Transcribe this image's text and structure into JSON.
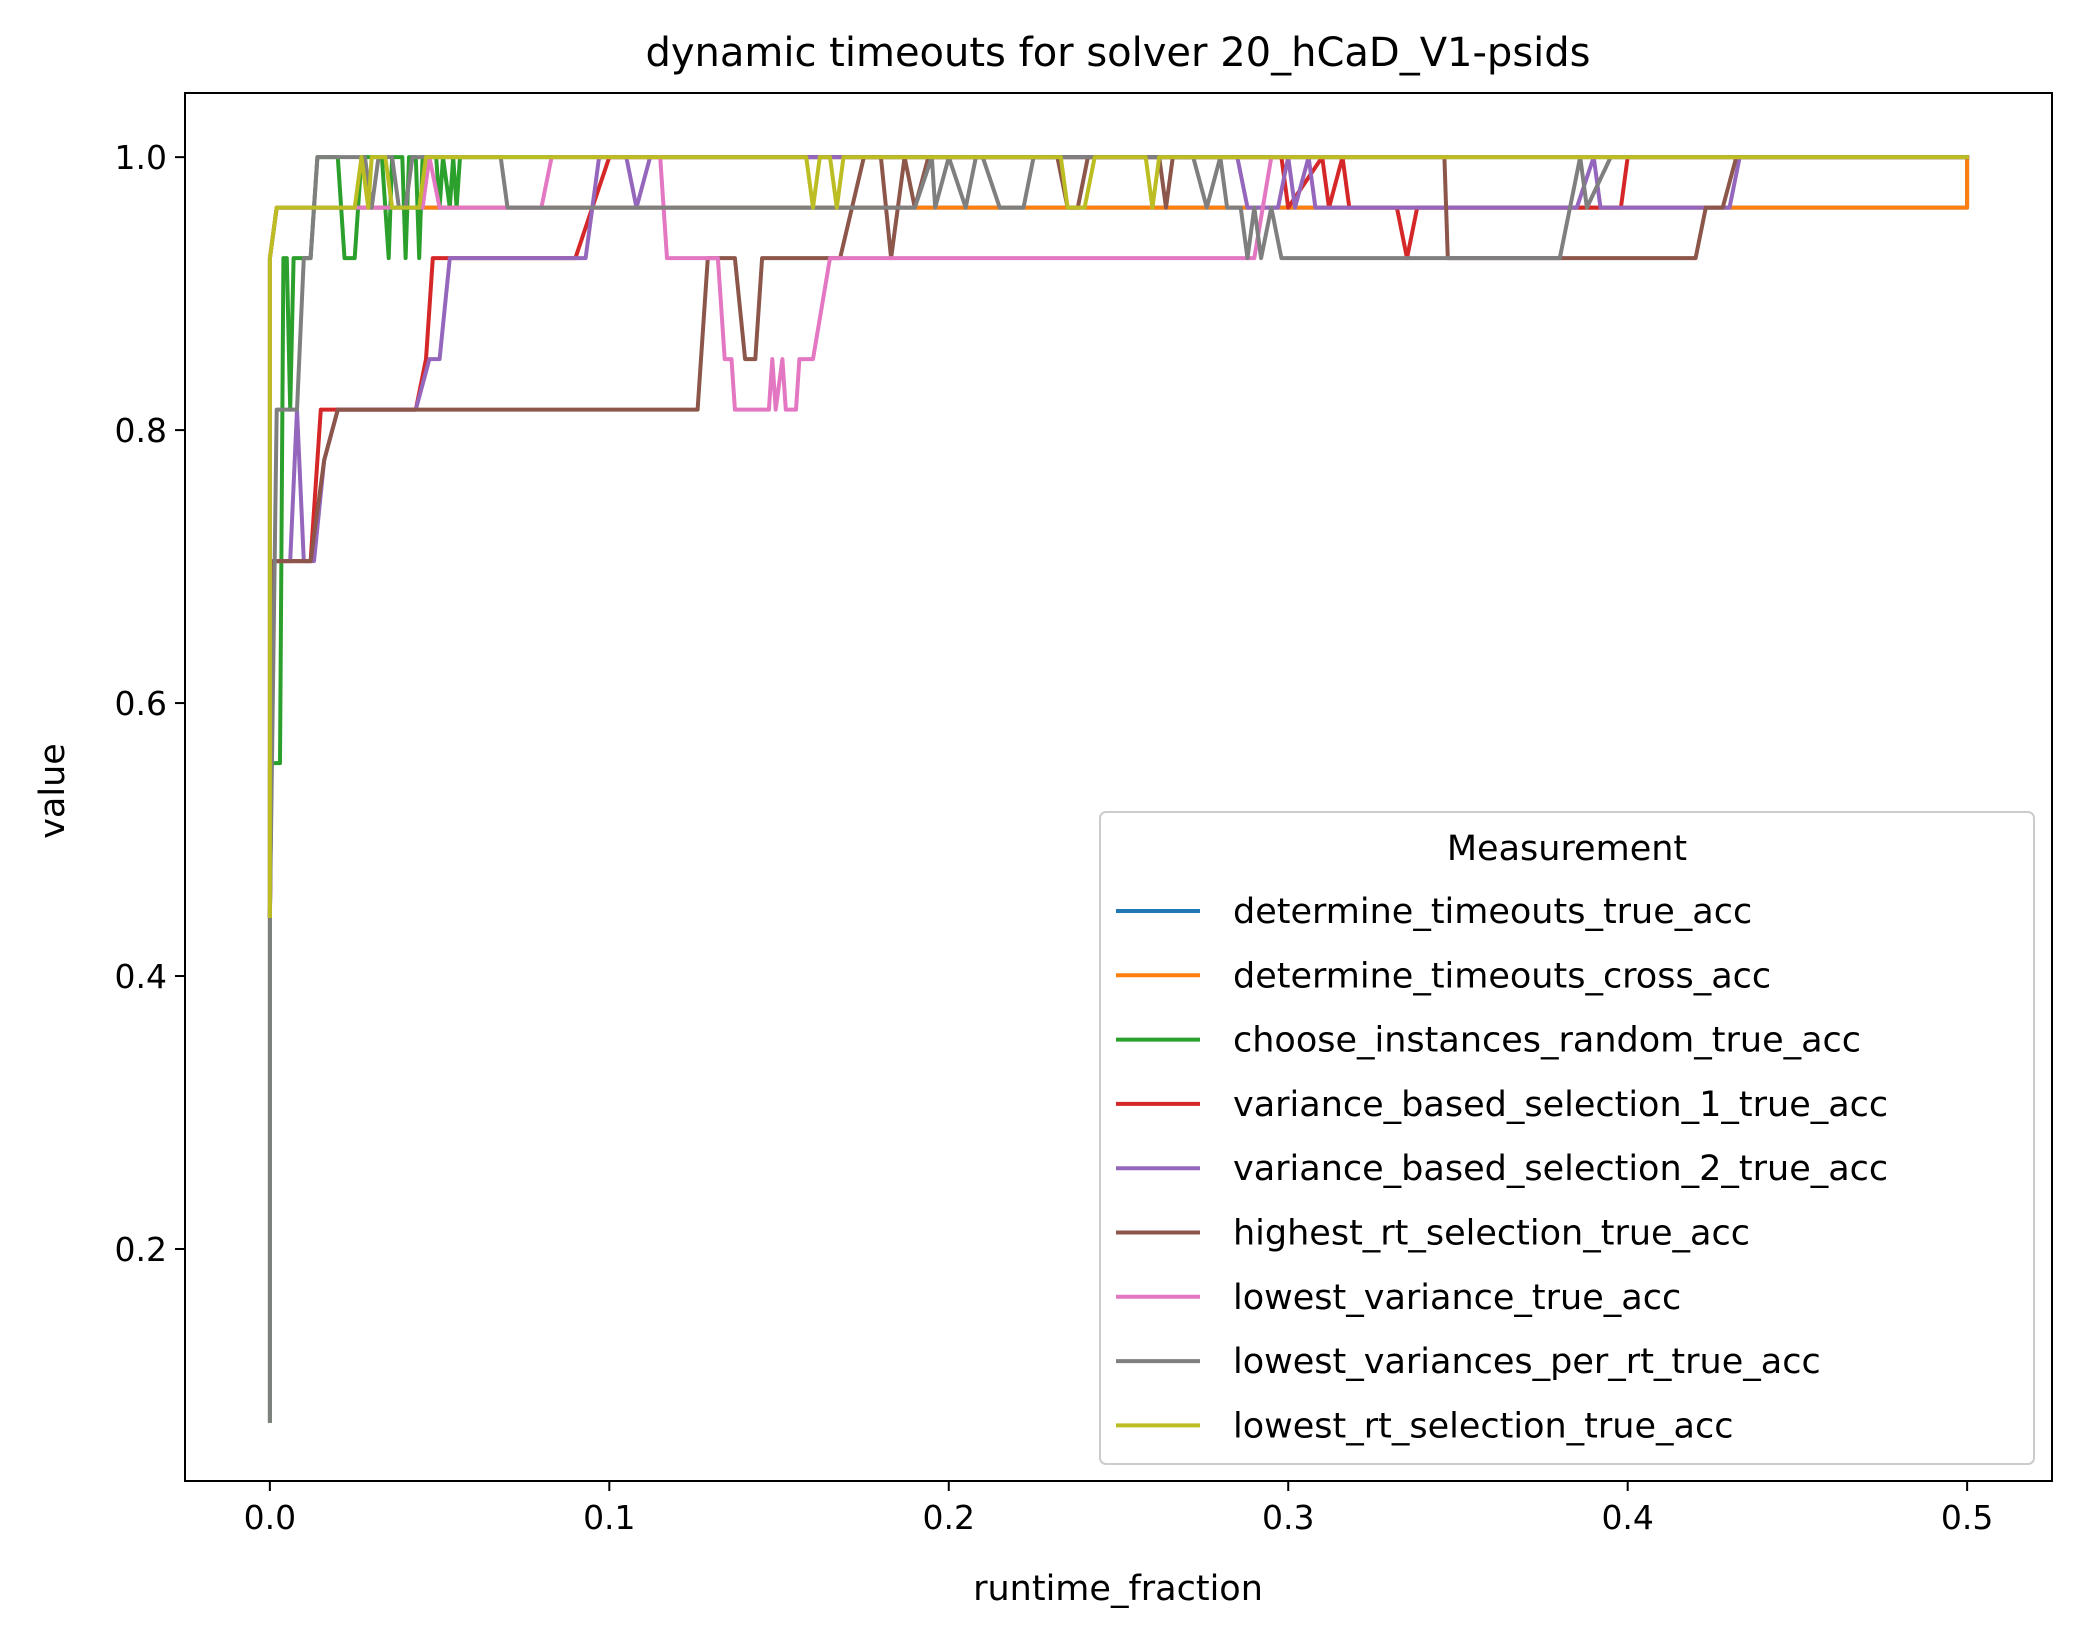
{
  "chart_data": {
    "type": "line",
    "title": "dynamic timeouts for solver 20_hCaD_V1-psids",
    "xlabel": "runtime_fraction",
    "ylabel": "value",
    "xlim": [
      -0.025,
      0.525
    ],
    "ylim": [
      0.03,
      1.047
    ],
    "x_ticks": [
      0.0,
      0.1,
      0.2,
      0.3,
      0.4,
      0.5
    ],
    "x_tick_labels": [
      "0.0",
      "0.1",
      "0.2",
      "0.3",
      "0.4",
      "0.5"
    ],
    "y_ticks": [
      0.2,
      0.4,
      0.6,
      0.8,
      1.0
    ],
    "y_tick_labels": [
      "0.2",
      "0.4",
      "0.6",
      "0.8",
      "1.0"
    ],
    "grid": false,
    "legend": {
      "title": "Measurement",
      "position": "lower-right"
    },
    "series": [
      {
        "name": "determine_timeouts_true_acc",
        "color": "#1f77b4",
        "points": [
          [
            0.0,
            0.444
          ],
          [
            0.0,
            0.926
          ],
          [
            0.002,
            0.963
          ],
          [
            0.5,
            0.963
          ],
          [
            0.5,
            1.0
          ]
        ]
      },
      {
        "name": "determine_timeouts_cross_acc",
        "color": "#ff7f0e",
        "points": [
          [
            0.0,
            0.444
          ],
          [
            0.0,
            0.926
          ],
          [
            0.002,
            0.963
          ],
          [
            0.5,
            0.963
          ],
          [
            0.5,
            1.0
          ]
        ]
      },
      {
        "name": "choose_instances_random_true_acc",
        "color": "#2ca02c",
        "points": [
          [
            0.0,
            0.074
          ],
          [
            0.0,
            0.556
          ],
          [
            0.003,
            0.556
          ],
          [
            0.004,
            0.926
          ],
          [
            0.005,
            0.926
          ],
          [
            0.006,
            0.815
          ],
          [
            0.007,
            0.926
          ],
          [
            0.012,
            0.926
          ],
          [
            0.014,
            1.0
          ],
          [
            0.02,
            1.0
          ],
          [
            0.022,
            0.926
          ],
          [
            0.025,
            0.926
          ],
          [
            0.027,
            1.0
          ],
          [
            0.033,
            1.0
          ],
          [
            0.035,
            0.926
          ],
          [
            0.036,
            1.0
          ],
          [
            0.039,
            1.0
          ],
          [
            0.04,
            0.926
          ],
          [
            0.041,
            1.0
          ],
          [
            0.043,
            1.0
          ],
          [
            0.044,
            0.926
          ],
          [
            0.045,
            1.0
          ],
          [
            0.049,
            1.0
          ],
          [
            0.05,
            0.963
          ],
          [
            0.051,
            1.0
          ],
          [
            0.053,
            0.963
          ],
          [
            0.054,
            1.0
          ],
          [
            0.055,
            0.963
          ],
          [
            0.056,
            1.0
          ],
          [
            0.5,
            1.0
          ]
        ]
      },
      {
        "name": "variance_based_selection_1_true_acc",
        "color": "#d62728",
        "points": [
          [
            0.0,
            0.444
          ],
          [
            0.001,
            0.704
          ],
          [
            0.012,
            0.704
          ],
          [
            0.015,
            0.815
          ],
          [
            0.043,
            0.815
          ],
          [
            0.046,
            0.852
          ],
          [
            0.048,
            0.926
          ],
          [
            0.09,
            0.926
          ],
          [
            0.095,
            0.963
          ],
          [
            0.1,
            1.0
          ],
          [
            0.298,
            1.0
          ],
          [
            0.3,
            0.963
          ],
          [
            0.31,
            1.0
          ],
          [
            0.312,
            0.963
          ],
          [
            0.316,
            1.0
          ],
          [
            0.318,
            0.963
          ],
          [
            0.332,
            0.963
          ],
          [
            0.335,
            0.926
          ],
          [
            0.338,
            0.963
          ],
          [
            0.398,
            0.963
          ],
          [
            0.4,
            1.0
          ],
          [
            0.5,
            1.0
          ]
        ]
      },
      {
        "name": "variance_based_selection_2_true_acc",
        "color": "#9467bd",
        "points": [
          [
            0.0,
            0.444
          ],
          [
            0.001,
            0.704
          ],
          [
            0.006,
            0.704
          ],
          [
            0.008,
            0.815
          ],
          [
            0.01,
            0.704
          ],
          [
            0.013,
            0.704
          ],
          [
            0.016,
            0.778
          ],
          [
            0.02,
            0.815
          ],
          [
            0.043,
            0.815
          ],
          [
            0.047,
            0.852
          ],
          [
            0.05,
            0.852
          ],
          [
            0.053,
            0.926
          ],
          [
            0.093,
            0.926
          ],
          [
            0.097,
            1.0
          ],
          [
            0.105,
            1.0
          ],
          [
            0.108,
            0.963
          ],
          [
            0.112,
            1.0
          ],
          [
            0.285,
            1.0
          ],
          [
            0.288,
            0.963
          ],
          [
            0.297,
            0.963
          ],
          [
            0.3,
            1.0
          ],
          [
            0.302,
            0.963
          ],
          [
            0.306,
            1.0
          ],
          [
            0.308,
            0.963
          ],
          [
            0.385,
            0.963
          ],
          [
            0.39,
            1.0
          ],
          [
            0.392,
            0.963
          ],
          [
            0.43,
            0.963
          ],
          [
            0.433,
            1.0
          ],
          [
            0.5,
            1.0
          ]
        ]
      },
      {
        "name": "highest_rt_selection_true_acc",
        "color": "#8c564b",
        "points": [
          [
            0.0,
            0.444
          ],
          [
            0.001,
            0.704
          ],
          [
            0.012,
            0.704
          ],
          [
            0.016,
            0.778
          ],
          [
            0.02,
            0.815
          ],
          [
            0.126,
            0.815
          ],
          [
            0.129,
            0.926
          ],
          [
            0.137,
            0.926
          ],
          [
            0.14,
            0.852
          ],
          [
            0.143,
            0.852
          ],
          [
            0.145,
            0.926
          ],
          [
            0.168,
            0.926
          ],
          [
            0.175,
            1.0
          ],
          [
            0.18,
            1.0
          ],
          [
            0.183,
            0.926
          ],
          [
            0.187,
            1.0
          ],
          [
            0.19,
            0.963
          ],
          [
            0.194,
            1.0
          ],
          [
            0.232,
            1.0
          ],
          [
            0.235,
            0.963
          ],
          [
            0.238,
            0.963
          ],
          [
            0.241,
            1.0
          ],
          [
            0.262,
            1.0
          ],
          [
            0.264,
            0.963
          ],
          [
            0.266,
            1.0
          ],
          [
            0.346,
            1.0
          ],
          [
            0.347,
            0.926
          ],
          [
            0.42,
            0.926
          ],
          [
            0.423,
            0.963
          ],
          [
            0.428,
            0.963
          ],
          [
            0.432,
            1.0
          ],
          [
            0.5,
            1.0
          ]
        ]
      },
      {
        "name": "lowest_variance_true_acc",
        "color": "#e377c2",
        "points": [
          [
            0.0,
            0.444
          ],
          [
            0.0,
            0.926
          ],
          [
            0.002,
            0.963
          ],
          [
            0.045,
            0.963
          ],
          [
            0.047,
            1.0
          ],
          [
            0.05,
            0.963
          ],
          [
            0.08,
            0.963
          ],
          [
            0.083,
            1.0
          ],
          [
            0.115,
            1.0
          ],
          [
            0.117,
            0.926
          ],
          [
            0.132,
            0.926
          ],
          [
            0.134,
            0.852
          ],
          [
            0.136,
            0.852
          ],
          [
            0.137,
            0.815
          ],
          [
            0.147,
            0.815
          ],
          [
            0.148,
            0.852
          ],
          [
            0.149,
            0.815
          ],
          [
            0.151,
            0.852
          ],
          [
            0.152,
            0.815
          ],
          [
            0.155,
            0.815
          ],
          [
            0.156,
            0.852
          ],
          [
            0.16,
            0.852
          ],
          [
            0.165,
            0.926
          ],
          [
            0.29,
            0.926
          ],
          [
            0.295,
            1.0
          ],
          [
            0.5,
            1.0
          ]
        ]
      },
      {
        "name": "lowest_variances_per_rt_true_acc",
        "color": "#7f7f7f",
        "points": [
          [
            0.0,
            0.074
          ],
          [
            0.0,
            0.444
          ],
          [
            0.002,
            0.815
          ],
          [
            0.008,
            0.815
          ],
          [
            0.01,
            0.926
          ],
          [
            0.012,
            0.926
          ],
          [
            0.014,
            1.0
          ],
          [
            0.028,
            1.0
          ],
          [
            0.03,
            0.963
          ],
          [
            0.032,
            1.0
          ],
          [
            0.036,
            1.0
          ],
          [
            0.038,
            0.963
          ],
          [
            0.04,
            0.963
          ],
          [
            0.042,
            1.0
          ],
          [
            0.068,
            1.0
          ],
          [
            0.07,
            0.963
          ],
          [
            0.19,
            0.963
          ],
          [
            0.195,
            1.0
          ],
          [
            0.196,
            0.963
          ],
          [
            0.2,
            1.0
          ],
          [
            0.205,
            0.963
          ],
          [
            0.208,
            1.0
          ],
          [
            0.21,
            1.0
          ],
          [
            0.215,
            0.963
          ],
          [
            0.222,
            0.963
          ],
          [
            0.225,
            1.0
          ],
          [
            0.272,
            1.0
          ],
          [
            0.276,
            0.963
          ],
          [
            0.28,
            1.0
          ],
          [
            0.282,
            0.963
          ],
          [
            0.286,
            0.963
          ],
          [
            0.288,
            0.926
          ],
          [
            0.29,
            0.963
          ],
          [
            0.292,
            0.926
          ],
          [
            0.295,
            0.963
          ],
          [
            0.298,
            0.926
          ],
          [
            0.38,
            0.926
          ],
          [
            0.386,
            1.0
          ],
          [
            0.388,
            0.963
          ],
          [
            0.395,
            1.0
          ],
          [
            0.5,
            1.0
          ]
        ]
      },
      {
        "name": "lowest_rt_selection_true_acc",
        "color": "#bcbd22",
        "points": [
          [
            0.0,
            0.444
          ],
          [
            0.0,
            0.926
          ],
          [
            0.002,
            0.963
          ],
          [
            0.025,
            0.963
          ],
          [
            0.027,
            1.0
          ],
          [
            0.029,
            0.963
          ],
          [
            0.03,
            1.0
          ],
          [
            0.034,
            1.0
          ],
          [
            0.036,
            0.963
          ],
          [
            0.044,
            0.963
          ],
          [
            0.046,
            1.0
          ],
          [
            0.158,
            1.0
          ],
          [
            0.16,
            0.963
          ],
          [
            0.162,
            1.0
          ],
          [
            0.165,
            1.0
          ],
          [
            0.167,
            0.963
          ],
          [
            0.169,
            1.0
          ],
          [
            0.233,
            1.0
          ],
          [
            0.235,
            0.963
          ],
          [
            0.24,
            0.963
          ],
          [
            0.243,
            1.0
          ],
          [
            0.258,
            1.0
          ],
          [
            0.26,
            0.963
          ],
          [
            0.262,
            1.0
          ],
          [
            0.5,
            1.0
          ]
        ]
      }
    ]
  }
}
